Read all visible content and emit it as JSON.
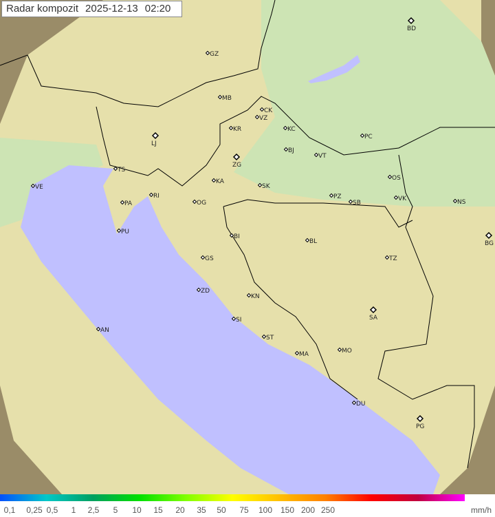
{
  "header": {
    "title": "Radar kompozit",
    "date": "2025-12-13",
    "time": "02:20"
  },
  "colors": {
    "sea": "#c0c0ff",
    "land": "#e8e2a8",
    "land_green": "#cfe5b0",
    "outside": "#a89870",
    "border": "#000000"
  },
  "cities": [
    {
      "code": "GZ",
      "major": false
    },
    {
      "code": "BD",
      "major": true
    },
    {
      "code": "MB",
      "major": false
    },
    {
      "code": "CK",
      "major": false
    },
    {
      "code": "VZ",
      "major": false
    },
    {
      "code": "KR",
      "major": false
    },
    {
      "code": "KC",
      "major": false
    },
    {
      "code": "LJ",
      "major": true
    },
    {
      "code": "PC",
      "major": false
    },
    {
      "code": "ZG",
      "major": true
    },
    {
      "code": "BJ",
      "major": false
    },
    {
      "code": "VT",
      "major": false
    },
    {
      "code": "TS",
      "major": false
    },
    {
      "code": "VE",
      "major": false
    },
    {
      "code": "KA",
      "major": false
    },
    {
      "code": "RI",
      "major": false
    },
    {
      "code": "SK",
      "major": false
    },
    {
      "code": "OS",
      "major": false
    },
    {
      "code": "PA",
      "major": false
    },
    {
      "code": "PZ",
      "major": false
    },
    {
      "code": "SB",
      "major": false
    },
    {
      "code": "VK",
      "major": false
    },
    {
      "code": "NS",
      "major": false
    },
    {
      "code": "OG",
      "major": false
    },
    {
      "code": "PU",
      "major": false
    },
    {
      "code": "BI",
      "major": false
    },
    {
      "code": "BG",
      "major": true
    },
    {
      "code": "BL",
      "major": false
    },
    {
      "code": "GS",
      "major": false
    },
    {
      "code": "TZ",
      "major": false
    },
    {
      "code": "ZD",
      "major": false
    },
    {
      "code": "KN",
      "major": false
    },
    {
      "code": "SA",
      "major": true
    },
    {
      "code": "AN",
      "major": false
    },
    {
      "code": "SI",
      "major": false
    },
    {
      "code": "ST",
      "major": false
    },
    {
      "code": "MO",
      "major": false
    },
    {
      "code": "MA",
      "major": false
    },
    {
      "code": "DU",
      "major": false
    },
    {
      "code": "PG",
      "major": true
    }
  ],
  "legend": {
    "labels": [
      "0,1",
      "0,25",
      "0,5",
      "1",
      "2,5",
      "5",
      "10",
      "15",
      "20",
      "35",
      "50",
      "75",
      "100",
      "150",
      "200",
      "250"
    ],
    "unit": "mm/h",
    "gradient": [
      "#0050ff",
      "#00c8c8",
      "#00a060",
      "#00e000",
      "#80ff00",
      "#ffff00",
      "#ffc000",
      "#ff8000",
      "#ff0000",
      "#c00040",
      "#ff00ff"
    ]
  }
}
